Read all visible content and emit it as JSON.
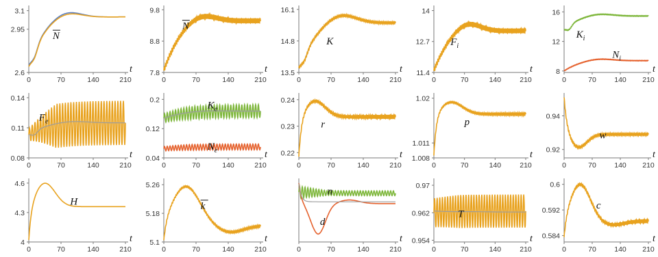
{
  "figure": {
    "x_axis_label": "t"
  },
  "colors": {
    "orange": "#E8A21E",
    "blue": "#5B7FC2",
    "green": "#7DB63A",
    "red": "#E5612D",
    "gray": "#9C9C9C"
  },
  "chart_data": [
    {
      "type": "line",
      "label": "N",
      "overline": true,
      "label_at": [
        52,
        2.87
      ],
      "xticks": [
        "0",
        "70",
        "140",
        "210"
      ],
      "yticks": [
        "2.6",
        "2.95",
        "3.1"
      ],
      "ylim": [
        2.6,
        3.12
      ],
      "series": [
        {
          "color": "blue",
          "model": "damped",
          "y0": 2.67,
          "target": 3.05,
          "dip": 0.06,
          "peak": 3.11,
          "peakT": 80,
          "osc": 0
        },
        {
          "color": "orange",
          "model": "damped",
          "y0": 2.66,
          "target": 3.05,
          "dip": 0.06,
          "peak": 3.1,
          "peakT": 80,
          "osc": 0
        }
      ]
    },
    {
      "type": "line",
      "label": "N",
      "overline": true,
      "label_at": [
        40,
        9.18
      ],
      "xticks": [
        "0",
        "70",
        "140",
        "210"
      ],
      "yticks": [
        "7.8",
        "8.8",
        "9.8"
      ],
      "ylim": [
        7.8,
        9.85
      ],
      "series": [
        {
          "color": "orange",
          "model": "damped",
          "y0": 7.85,
          "target": 9.45,
          "dip": 0,
          "peak": 9.7,
          "peakT": 80,
          "osc": 0.08
        }
      ]
    },
    {
      "type": "line",
      "label": "K",
      "label_at": [
        60,
        14.65
      ],
      "xticks": [
        "0",
        "70",
        "140",
        "210"
      ],
      "yticks": [
        "13.5",
        "14.8",
        "16.1"
      ],
      "ylim": [
        13.5,
        16.15
      ],
      "series": [
        {
          "color": "blue",
          "model": "damped",
          "y0": 13.75,
          "target": 15.55,
          "dip": 0.25,
          "peak": 16.0,
          "peakT": 88,
          "osc": 0
        },
        {
          "color": "orange",
          "model": "damped",
          "y0": 13.73,
          "target": 15.55,
          "dip": 0.25,
          "peak": 15.98,
          "peakT": 88,
          "osc": 0.05
        }
      ]
    },
    {
      "type": "line",
      "label": "F",
      "sub": "i",
      "label_at": [
        38,
        12.55
      ],
      "xticks": [
        "0",
        "70",
        "140",
        "210"
      ],
      "yticks": [
        "11.4",
        "12.7",
        "14"
      ],
      "ylim": [
        11.4,
        14.1
      ],
      "series": [
        {
          "color": "orange",
          "model": "damped",
          "y0": 11.45,
          "target": 13.15,
          "dip": 0,
          "peak": 13.55,
          "peakT": 75,
          "osc": 0.1
        }
      ]
    },
    {
      "type": "line",
      "labels": [
        {
          "text": "K",
          "sub": "i",
          "at": [
            30,
            12.5
          ]
        },
        {
          "text": "N",
          "sub": "i",
          "at": [
            120,
            9.8
          ]
        }
      ],
      "xticks": [
        "0",
        "70",
        "140",
        "210"
      ],
      "yticks": [
        "8",
        "12",
        "16"
      ],
      "ylim": [
        7.8,
        16.5
      ],
      "series": [
        {
          "color": "green",
          "model": "damped",
          "y0": 13.7,
          "target": 15.45,
          "dip": 0.6,
          "peak": 15.8,
          "peakT": 85,
          "osc": 0.05
        },
        {
          "color": "red",
          "model": "damped",
          "y0": 8.0,
          "target": 9.4,
          "dip": 0,
          "peak": 9.7,
          "peakT": 85,
          "osc": 0.04
        }
      ]
    },
    {
      "type": "line",
      "label": "F",
      "sub": "e",
      "label_at": [
        22,
        0.117
      ],
      "xticks": [
        "0",
        "70",
        "140",
        "210"
      ],
      "yticks": [
        "0.08",
        "0.11",
        "0.14"
      ],
      "ylim": [
        0.08,
        0.142
      ],
      "series": [
        {
          "color": "orange",
          "model": "osc",
          "amp": [
            0.006,
            0.022
          ],
          "center": [
            0.103,
            0.115
          ],
          "period": 6
        },
        {
          "color": "gray",
          "model": "damped",
          "y0": 0.104,
          "target": 0.115,
          "dip": 0.004,
          "peak": 0.117,
          "peakT": 90,
          "osc": 0
        }
      ]
    },
    {
      "type": "line",
      "labels": [
        {
          "text": "K",
          "sub": "e",
          "at": [
            95,
            0.175
          ]
        },
        {
          "text": "N",
          "sub": "e",
          "at": [
            95,
            0.062
          ]
        }
      ],
      "xticks": [
        "0",
        "70",
        "140",
        "210"
      ],
      "yticks": [
        "0.04",
        "0.12",
        "0.2"
      ],
      "ylim": [
        0.04,
        0.21
      ],
      "series": [
        {
          "color": "green",
          "model": "osc",
          "amp": [
            0.012,
            0.018
          ],
          "center": [
            0.148,
            0.168
          ],
          "period": 6
        },
        {
          "color": "red",
          "model": "osc",
          "amp": [
            0.006,
            0.008
          ],
          "center": [
            0.065,
            0.07
          ],
          "period": 6
        },
        {
          "color": "gray",
          "model": "damped",
          "y0": 0.148,
          "target": 0.168,
          "dip": 0,
          "peak": 0.17,
          "peakT": 90,
          "osc": 0
        }
      ]
    },
    {
      "type": "line",
      "label": "r",
      "label_at": [
        48,
        0.2295
      ],
      "xticks": [
        "0",
        "70",
        "140",
        "210"
      ],
      "yticks": [
        "0.22",
        "0.23",
        "0.24"
      ],
      "ylim": [
        0.218,
        0.2415
      ],
      "series": [
        {
          "color": "orange",
          "model": "jump",
          "y0": 0.2185,
          "target": 0.2335,
          "peak": 0.2395,
          "peakT": 35,
          "osc": 0.0008
        }
      ]
    },
    {
      "type": "line",
      "label": "p",
      "label_at": [
        70,
        1.0146
      ],
      "xticks": [
        "0",
        "70",
        "140",
        "210"
      ],
      "yticks": [
        "1.008",
        "1.011",
        "1.02"
      ],
      "ylim": [
        1.008,
        1.0205
      ],
      "series": [
        {
          "color": "orange",
          "model": "jump",
          "y0": 1.0085,
          "target": 1.0168,
          "peak": 1.0192,
          "peakT": 40,
          "osc": 0.0003
        }
      ]
    },
    {
      "type": "line",
      "label": "w",
      "label_at": [
        88,
        0.9265
      ],
      "xticks": [
        "0",
        "70",
        "140",
        "210"
      ],
      "yticks": [
        "0.92",
        "0.94"
      ],
      "ylim": [
        0.915,
        0.952
      ],
      "series": [
        {
          "color": "orange",
          "model": "drop",
          "y0": 0.951,
          "target": 0.929,
          "trough": 0.921,
          "troughT": 35,
          "osc": 0.0007
        }
      ]
    },
    {
      "type": "line",
      "label": "H",
      "label_at": [
        90,
        4.38
      ],
      "xticks": [
        "0",
        "70",
        "140",
        "210"
      ],
      "yticks": [
        "4",
        "4.3",
        "4.6"
      ],
      "ylim": [
        4.0,
        4.62
      ],
      "series": [
        {
          "color": "orange",
          "model": "jump",
          "y0": 4.02,
          "target": 4.36,
          "peak": 4.6,
          "peakT": 35,
          "osc": 0
        }
      ]
    },
    {
      "type": "line",
      "label": "k",
      "overline": true,
      "label_at": [
        80,
        5.192
      ],
      "xticks": [
        "0",
        "70",
        "140",
        "210"
      ],
      "yticks": [
        "5.1",
        "5.18",
        "5.26"
      ],
      "ylim": [
        5.1,
        5.27
      ],
      "series": [
        {
          "color": "orange",
          "model": "jump",
          "y0": 5.105,
          "target": 5.145,
          "peak": 5.255,
          "peakT": 48,
          "osc": 0.004,
          "undershoot": 0.018
        }
      ]
    },
    {
      "type": "line",
      "labels": [
        {
          "text": "n",
          "at": [
            62,
            0.78
          ]
        },
        {
          "text": "d",
          "at": [
            46,
            0.28
          ]
        }
      ],
      "xticks": [
        "0",
        "70",
        "140",
        "210"
      ],
      "yticks": [],
      "ylim": [
        0,
        1
      ],
      "series": [
        {
          "color": "green",
          "model": "osc",
          "amp": [
            0.1,
            0.04
          ],
          "center": [
            0.82,
            0.8
          ],
          "period": 6
        },
        {
          "color": "red",
          "model": "custom_d"
        },
        {
          "color": "gray",
          "model": "flatdrop"
        }
      ]
    },
    {
      "type": "line",
      "label": "T",
      "label_at": [
        55,
        0.9608
      ],
      "xticks": [
        "0",
        "70",
        "140",
        "210"
      ],
      "yticks": [
        "0.954",
        "0.962",
        "0.97"
      ],
      "ylim": [
        0.9535,
        0.9712
      ],
      "series": [
        {
          "color": "orange",
          "model": "osc",
          "amp": [
            0.0042,
            0.0048
          ],
          "center": [
            0.962,
            0.9625
          ],
          "period": 6
        },
        {
          "color": "gray",
          "model": "damped",
          "y0": 0.9625,
          "target": 0.9622,
          "dip": 0,
          "peak": 0.9623,
          "peakT": 90,
          "osc": 0
        }
      ]
    },
    {
      "type": "line",
      "label": "c",
      "label_at": [
        80,
        0.5925
      ],
      "xticks": [
        "0",
        "70",
        "140",
        "210"
      ],
      "yticks": [
        "0.584",
        "0.592",
        "0.6"
      ],
      "ylim": [
        0.582,
        0.601
      ],
      "series": [
        {
          "color": "orange",
          "model": "jump",
          "y0": 0.5835,
          "target": 0.5885,
          "peak": 0.6,
          "peakT": 40,
          "osc": 0.0006,
          "undershoot": 0.0012
        }
      ]
    }
  ]
}
